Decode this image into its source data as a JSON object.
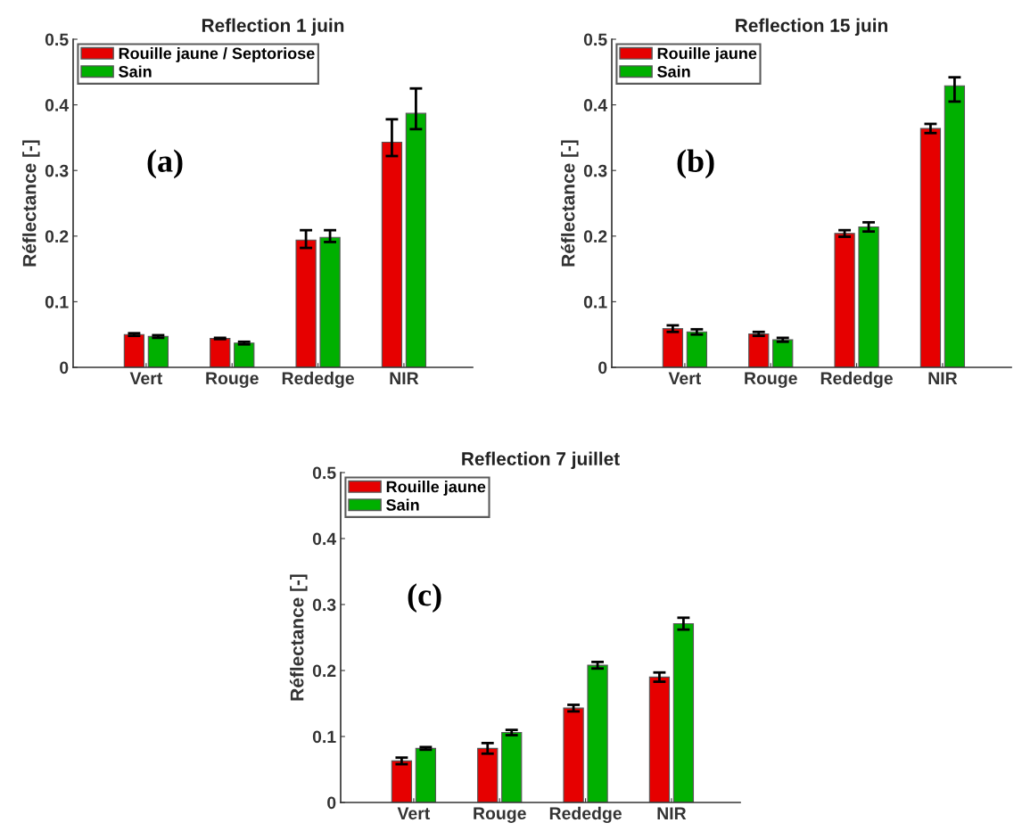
{
  "chart_data": [
    {
      "type": "bar",
      "title": "Reflection 1 juin",
      "ylabel": "Réflectance [-]",
      "categories": [
        "Vert",
        "Rouge",
        "Rededge",
        "NIR"
      ],
      "ylim": [
        0,
        0.5
      ],
      "yticks": [
        0,
        0.1,
        0.2,
        0.3,
        0.4,
        0.5
      ],
      "legend": "top left",
      "grid": false,
      "annotations": [
        "(a)"
      ],
      "series": [
        {
          "name": "Rouille jaune / Septoriose",
          "color": "#e60000",
          "values": [
            0.05,
            0.044,
            0.194,
            0.343
          ],
          "errors": [
            0.002,
            0.001,
            [
              0.182,
              0.209
            ],
            [
              0.322,
              0.378
            ]
          ]
        },
        {
          "name": "Sain",
          "color": "#00b000",
          "values": [
            0.047,
            0.037,
            0.198,
            0.387
          ],
          "errors": [
            0.002,
            0.002,
            [
              0.191,
              0.209
            ],
            [
              0.363,
              0.425
            ]
          ]
        }
      ]
    },
    {
      "type": "bar",
      "title": "Reflection 15 juin",
      "ylabel": "Réflectance [-]",
      "categories": [
        "Vert",
        "Rouge",
        "Rededge",
        "NIR"
      ],
      "ylim": [
        0,
        0.5
      ],
      "yticks": [
        0,
        0.1,
        0.2,
        0.3,
        0.4,
        0.5
      ],
      "legend": "top left",
      "grid": false,
      "annotations": [
        "(b)"
      ],
      "series": [
        {
          "name": "Rouille jaune",
          "color": "#e60000",
          "values": [
            0.059,
            0.051,
            0.204,
            0.364
          ],
          "errors": [
            0.005,
            0.003,
            0.005,
            0.007
          ]
        },
        {
          "name": "Sain",
          "color": "#00b000",
          "values": [
            0.054,
            0.042,
            0.214,
            0.429
          ],
          "errors": [
            0.004,
            0.003,
            0.007,
            [
              0.405,
              0.442
            ]
          ]
        }
      ]
    },
    {
      "type": "bar",
      "title": "Reflection 7 juillet",
      "ylabel": "Réflectance [-]",
      "categories": [
        "Vert",
        "Rouge",
        "Rededge",
        "NIR"
      ],
      "ylim": [
        0,
        0.5
      ],
      "yticks": [
        0,
        0.1,
        0.2,
        0.3,
        0.4,
        0.5
      ],
      "legend": "top left",
      "grid": false,
      "annotations": [
        "(c)"
      ],
      "series": [
        {
          "name": "Rouille jaune",
          "color": "#e60000",
          "values": [
            0.063,
            0.082,
            0.143,
            0.19
          ],
          "errors": [
            0.005,
            0.008,
            0.005,
            0.007
          ]
        },
        {
          "name": "Sain",
          "color": "#00b000",
          "values": [
            0.082,
            0.106,
            0.208,
            0.271
          ],
          "errors": [
            0.002,
            0.004,
            0.005,
            0.009
          ]
        }
      ]
    }
  ]
}
